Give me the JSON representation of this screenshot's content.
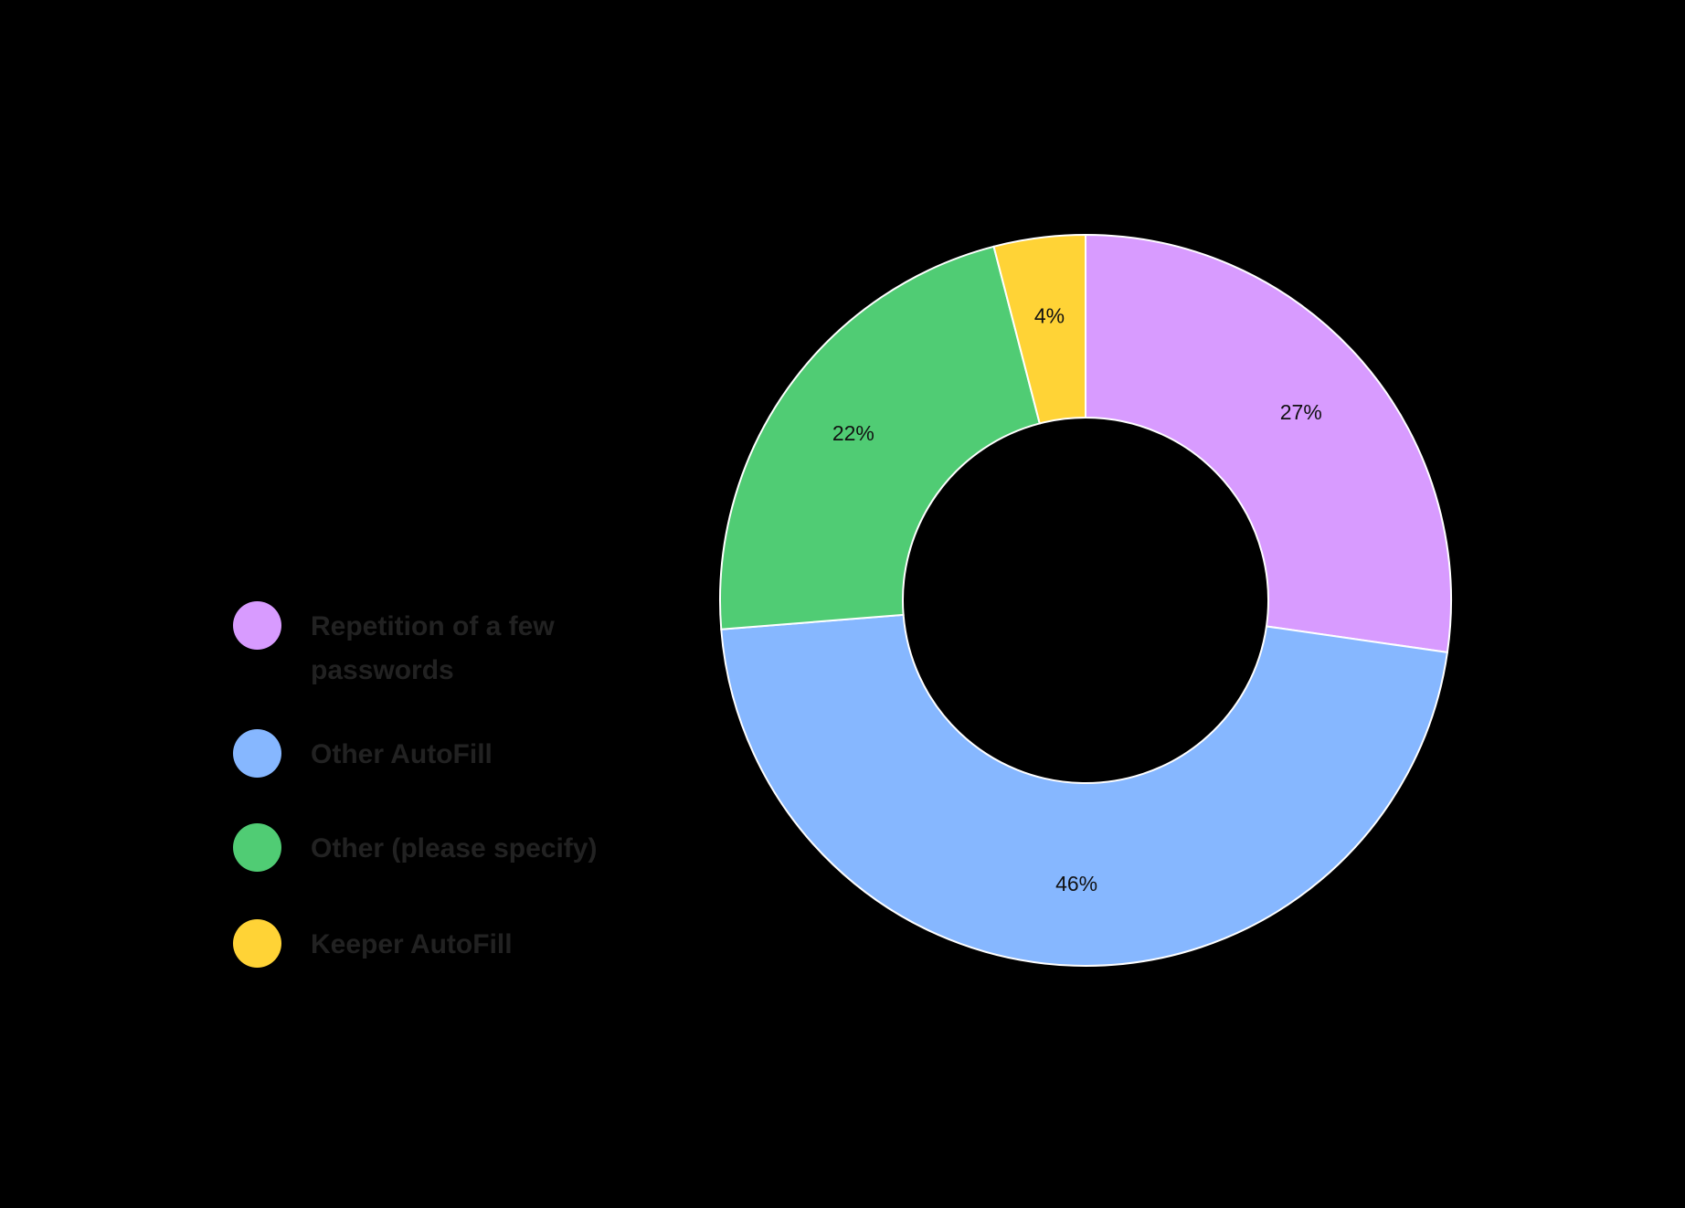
{
  "chart_data": {
    "type": "pie",
    "variant": "donut",
    "title": "",
    "categories": [
      "Repetition of a few passwords",
      "Other AutoFill",
      "Other (please specify)",
      "Keeper AutoFill"
    ],
    "values": [
      27,
      46,
      22,
      4
    ],
    "unit": "%",
    "data_labels": [
      "27%",
      "46%",
      "22%",
      "4%"
    ],
    "colors": [
      "#d89bff",
      "#86b7ff",
      "#50cc74",
      "#ffd336"
    ],
    "slice_order": "clockwise from 12 o'clock",
    "legend_position": "left",
    "background": "#000000",
    "slice_border_color": "#ffffff"
  },
  "legend": {
    "items": [
      {
        "label": "Repetition of a few passwords",
        "color": "#d89bff"
      },
      {
        "label": "Other AutoFill",
        "color": "#86b7ff"
      },
      {
        "label": "Other (please specify)",
        "color": "#50cc74"
      },
      {
        "label": "Keeper AutoFill",
        "color": "#ffd336"
      }
    ]
  }
}
